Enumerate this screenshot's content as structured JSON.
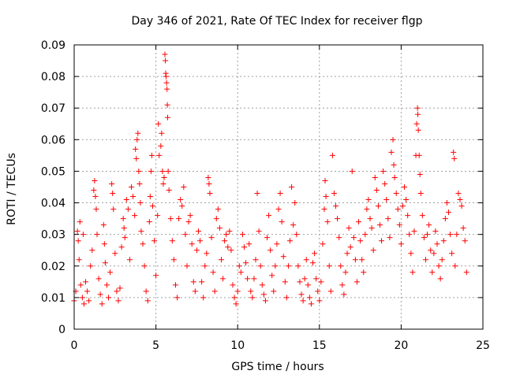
{
  "chart_data": {
    "type": "scatter",
    "title": "Day 346 of 2021, Rate Of TEC Index for receiver flgp",
    "xlabel": "GPS time / hours",
    "ylabel": "ROTI / TECUs",
    "xlim": [
      0,
      25
    ],
    "ylim": [
      0,
      0.09
    ],
    "xticks": [
      0,
      5,
      10,
      15,
      20,
      25
    ],
    "xtick_labels": [
      "0",
      "5",
      "10",
      "15",
      "20",
      "25"
    ],
    "yticks": [
      0,
      0.01,
      0.02,
      0.03,
      0.04,
      0.05,
      0.06,
      0.07,
      0.08,
      0.09
    ],
    "ytick_labels": [
      "0",
      "0.01",
      "0.02",
      "0.03",
      "0.04",
      "0.05",
      "0.06",
      "0.07",
      "0.08",
      "0.09"
    ],
    "grid": true,
    "marker": "+",
    "color": "#ff0000",
    "series": [
      {
        "name": "ROTI",
        "points": [
          [
            0.0,
            0.009
          ],
          [
            0.1,
            0.012
          ],
          [
            0.2,
            0.031
          ],
          [
            0.25,
            0.028
          ],
          [
            0.3,
            0.022
          ],
          [
            0.35,
            0.034
          ],
          [
            0.4,
            0.014
          ],
          [
            0.5,
            0.01
          ],
          [
            0.55,
            0.03
          ],
          [
            0.6,
            0.008
          ],
          [
            0.7,
            0.015
          ],
          [
            0.8,
            0.012
          ],
          [
            0.9,
            0.009
          ],
          [
            1.0,
            0.02
          ],
          [
            1.1,
            0.025
          ],
          [
            1.2,
            0.044
          ],
          [
            1.25,
            0.047
          ],
          [
            1.3,
            0.042
          ],
          [
            1.35,
            0.038
          ],
          [
            1.4,
            0.03
          ],
          [
            1.5,
            0.016
          ],
          [
            1.6,
            0.011
          ],
          [
            1.7,
            0.008
          ],
          [
            1.8,
            0.033
          ],
          [
            1.85,
            0.027
          ],
          [
            1.9,
            0.021
          ],
          [
            2.0,
            0.014
          ],
          [
            2.1,
            0.01
          ],
          [
            2.2,
            0.018
          ],
          [
            2.3,
            0.046
          ],
          [
            2.35,
            0.043
          ],
          [
            2.4,
            0.038
          ],
          [
            2.5,
            0.024
          ],
          [
            2.6,
            0.012
          ],
          [
            2.7,
            0.009
          ],
          [
            2.8,
            0.013
          ],
          [
            2.9,
            0.026
          ],
          [
            3.0,
            0.035
          ],
          [
            3.05,
            0.032
          ],
          [
            3.1,
            0.029
          ],
          [
            3.2,
            0.041
          ],
          [
            3.3,
            0.038
          ],
          [
            3.4,
            0.022
          ],
          [
            3.5,
            0.045
          ],
          [
            3.6,
            0.042
          ],
          [
            3.7,
            0.036
          ],
          [
            3.75,
            0.057
          ],
          [
            3.8,
            0.054
          ],
          [
            3.85,
            0.06
          ],
          [
            3.9,
            0.062
          ],
          [
            3.95,
            0.05
          ],
          [
            4.0,
            0.046
          ],
          [
            4.05,
            0.04
          ],
          [
            4.1,
            0.031
          ],
          [
            4.2,
            0.027
          ],
          [
            4.3,
            0.02
          ],
          [
            4.4,
            0.012
          ],
          [
            4.5,
            0.009
          ],
          [
            4.6,
            0.034
          ],
          [
            4.65,
            0.042
          ],
          [
            4.7,
            0.05
          ],
          [
            4.75,
            0.055
          ],
          [
            4.8,
            0.039
          ],
          [
            4.9,
            0.028
          ],
          [
            5.0,
            0.017
          ],
          [
            5.1,
            0.036
          ],
          [
            5.15,
            0.065
          ],
          [
            5.2,
            0.055
          ],
          [
            5.3,
            0.058
          ],
          [
            5.35,
            0.062
          ],
          [
            5.4,
            0.05
          ],
          [
            5.45,
            0.046
          ],
          [
            5.5,
            0.048
          ],
          [
            5.55,
            0.087
          ],
          [
            5.58,
            0.085
          ],
          [
            5.6,
            0.081
          ],
          [
            5.62,
            0.08
          ],
          [
            5.65,
            0.078
          ],
          [
            5.68,
            0.076
          ],
          [
            5.7,
            0.071
          ],
          [
            5.72,
            0.067
          ],
          [
            5.75,
            0.05
          ],
          [
            5.8,
            0.044
          ],
          [
            5.9,
            0.035
          ],
          [
            6.0,
            0.028
          ],
          [
            6.1,
            0.022
          ],
          [
            6.2,
            0.014
          ],
          [
            6.3,
            0.01
          ],
          [
            6.4,
            0.035
          ],
          [
            6.5,
            0.041
          ],
          [
            6.6,
            0.039
          ],
          [
            6.7,
            0.045
          ],
          [
            6.8,
            0.03
          ],
          [
            6.9,
            0.02
          ],
          [
            7.0,
            0.034
          ],
          [
            7.1,
            0.036
          ],
          [
            7.2,
            0.027
          ],
          [
            7.3,
            0.015
          ],
          [
            7.4,
            0.012
          ],
          [
            7.5,
            0.025
          ],
          [
            7.6,
            0.031
          ],
          [
            7.7,
            0.028
          ],
          [
            7.8,
            0.015
          ],
          [
            7.9,
            0.01
          ],
          [
            8.0,
            0.02
          ],
          [
            8.1,
            0.024
          ],
          [
            8.2,
            0.048
          ],
          [
            8.25,
            0.046
          ],
          [
            8.3,
            0.043
          ],
          [
            8.4,
            0.029
          ],
          [
            8.5,
            0.018
          ],
          [
            8.6,
            0.012
          ],
          [
            8.7,
            0.035
          ],
          [
            8.8,
            0.038
          ],
          [
            8.9,
            0.032
          ],
          [
            9.0,
            0.022
          ],
          [
            9.1,
            0.016
          ],
          [
            9.2,
            0.028
          ],
          [
            9.3,
            0.03
          ],
          [
            9.4,
            0.026
          ],
          [
            9.5,
            0.031
          ],
          [
            9.6,
            0.025
          ],
          [
            9.7,
            0.014
          ],
          [
            9.8,
            0.01
          ],
          [
            9.9,
            0.008
          ],
          [
            10.0,
            0.012
          ],
          [
            10.1,
            0.02
          ],
          [
            10.2,
            0.018
          ],
          [
            10.3,
            0.03
          ],
          [
            10.4,
            0.026
          ],
          [
            10.5,
            0.021
          ],
          [
            10.6,
            0.016
          ],
          [
            10.7,
            0.027
          ],
          [
            10.8,
            0.012
          ],
          [
            10.9,
            0.01
          ],
          [
            11.0,
            0.016
          ],
          [
            11.1,
            0.022
          ],
          [
            11.2,
            0.043
          ],
          [
            11.3,
            0.031
          ],
          [
            11.4,
            0.02
          ],
          [
            11.5,
            0.014
          ],
          [
            11.6,
            0.011
          ],
          [
            11.7,
            0.009
          ],
          [
            11.8,
            0.029
          ],
          [
            11.9,
            0.036
          ],
          [
            12.0,
            0.025
          ],
          [
            12.1,
            0.017
          ],
          [
            12.2,
            0.012
          ],
          [
            12.3,
            0.02
          ],
          [
            12.4,
            0.027
          ],
          [
            12.5,
            0.038
          ],
          [
            12.6,
            0.043
          ],
          [
            12.7,
            0.034
          ],
          [
            12.8,
            0.023
          ],
          [
            12.9,
            0.015
          ],
          [
            13.0,
            0.01
          ],
          [
            13.1,
            0.02
          ],
          [
            13.2,
            0.028
          ],
          [
            13.3,
            0.045
          ],
          [
            13.4,
            0.033
          ],
          [
            13.5,
            0.04
          ],
          [
            13.6,
            0.03
          ],
          [
            13.7,
            0.02
          ],
          [
            13.8,
            0.015
          ],
          [
            13.9,
            0.011
          ],
          [
            14.0,
            0.009
          ],
          [
            14.1,
            0.016
          ],
          [
            14.2,
            0.022
          ],
          [
            14.3,
            0.014
          ],
          [
            14.4,
            0.01
          ],
          [
            14.5,
            0.008
          ],
          [
            14.6,
            0.021
          ],
          [
            14.7,
            0.024
          ],
          [
            14.8,
            0.016
          ],
          [
            14.9,
            0.012
          ],
          [
            15.0,
            0.009
          ],
          [
            15.1,
            0.015
          ],
          [
            15.2,
            0.027
          ],
          [
            15.3,
            0.038
          ],
          [
            15.35,
            0.047
          ],
          [
            15.4,
            0.042
          ],
          [
            15.5,
            0.034
          ],
          [
            15.6,
            0.02
          ],
          [
            15.7,
            0.012
          ],
          [
            15.8,
            0.055
          ],
          [
            15.9,
            0.043
          ],
          [
            16.0,
            0.039
          ],
          [
            16.1,
            0.035
          ],
          [
            16.2,
            0.029
          ],
          [
            16.3,
            0.02
          ],
          [
            16.4,
            0.014
          ],
          [
            16.5,
            0.011
          ],
          [
            16.6,
            0.018
          ],
          [
            16.7,
            0.024
          ],
          [
            16.8,
            0.032
          ],
          [
            16.9,
            0.026
          ],
          [
            17.0,
            0.05
          ],
          [
            17.1,
            0.029
          ],
          [
            17.2,
            0.022
          ],
          [
            17.3,
            0.015
          ],
          [
            17.4,
            0.034
          ],
          [
            17.5,
            0.028
          ],
          [
            17.6,
            0.022
          ],
          [
            17.7,
            0.018
          ],
          [
            17.8,
            0.03
          ],
          [
            17.9,
            0.038
          ],
          [
            18.0,
            0.041
          ],
          [
            18.1,
            0.035
          ],
          [
            18.2,
            0.032
          ],
          [
            18.3,
            0.025
          ],
          [
            18.4,
            0.048
          ],
          [
            18.5,
            0.044
          ],
          [
            18.6,
            0.039
          ],
          [
            18.7,
            0.033
          ],
          [
            18.8,
            0.028
          ],
          [
            18.9,
            0.05
          ],
          [
            19.0,
            0.046
          ],
          [
            19.1,
            0.041
          ],
          [
            19.2,
            0.035
          ],
          [
            19.3,
            0.029
          ],
          [
            19.4,
            0.056
          ],
          [
            19.5,
            0.06
          ],
          [
            19.55,
            0.052
          ],
          [
            19.6,
            0.048
          ],
          [
            19.7,
            0.043
          ],
          [
            19.8,
            0.038
          ],
          [
            19.9,
            0.033
          ],
          [
            20.0,
            0.027
          ],
          [
            20.1,
            0.039
          ],
          [
            20.2,
            0.045
          ],
          [
            20.3,
            0.041
          ],
          [
            20.4,
            0.036
          ],
          [
            20.5,
            0.03
          ],
          [
            20.6,
            0.024
          ],
          [
            20.7,
            0.018
          ],
          [
            20.8,
            0.031
          ],
          [
            20.9,
            0.055
          ],
          [
            20.95,
            0.065
          ],
          [
            21.0,
            0.07
          ],
          [
            21.02,
            0.068
          ],
          [
            21.05,
            0.063
          ],
          [
            21.1,
            0.055
          ],
          [
            21.15,
            0.049
          ],
          [
            21.2,
            0.043
          ],
          [
            21.3,
            0.036
          ],
          [
            21.4,
            0.029
          ],
          [
            21.5,
            0.022
          ],
          [
            21.6,
            0.03
          ],
          [
            21.7,
            0.033
          ],
          [
            21.8,
            0.025
          ],
          [
            21.9,
            0.018
          ],
          [
            22.0,
            0.024
          ],
          [
            22.1,
            0.031
          ],
          [
            22.2,
            0.027
          ],
          [
            22.3,
            0.02
          ],
          [
            22.4,
            0.016
          ],
          [
            22.5,
            0.022
          ],
          [
            22.6,
            0.028
          ],
          [
            22.7,
            0.035
          ],
          [
            22.8,
            0.04
          ],
          [
            22.9,
            0.037
          ],
          [
            23.0,
            0.03
          ],
          [
            23.1,
            0.024
          ],
          [
            23.2,
            0.056
          ],
          [
            23.25,
            0.054
          ],
          [
            23.3,
            0.02
          ],
          [
            23.4,
            0.03
          ],
          [
            23.5,
            0.043
          ],
          [
            23.6,
            0.041
          ],
          [
            23.7,
            0.039
          ],
          [
            23.8,
            0.032
          ],
          [
            23.9,
            0.028
          ],
          [
            24.0,
            0.018
          ]
        ]
      }
    ]
  }
}
